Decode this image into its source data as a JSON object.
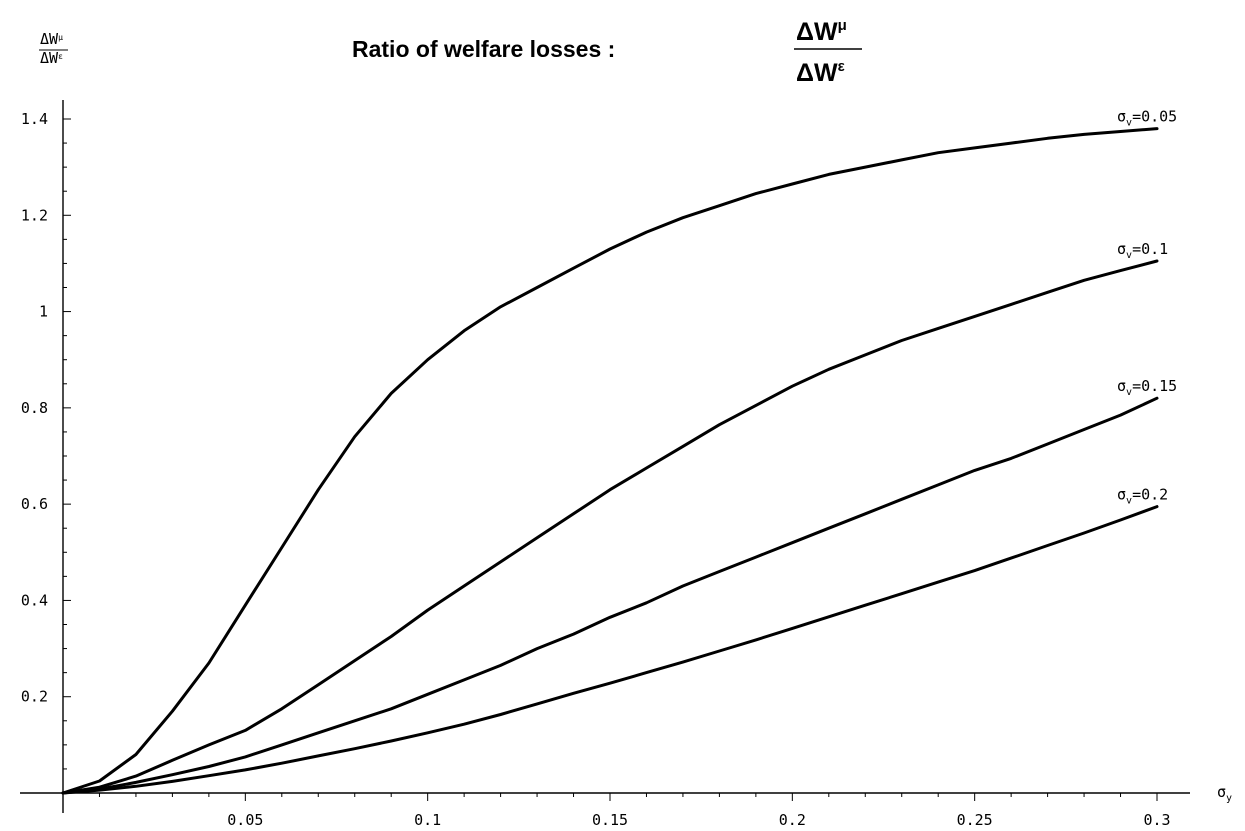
{
  "chart_data": {
    "type": "line",
    "title": {
      "prefix": "Ratio  of  welfare  losses  :",
      "numerator": "ΔW",
      "numerator_sup": "μ",
      "denominator": "ΔW",
      "denominator_sup": "ε"
    },
    "ylabel": {
      "numerator": "ΔW",
      "numerator_sup": "μ",
      "denominator": "ΔW",
      "denominator_sup": "ε"
    },
    "xlabel": {
      "symbol": "σ",
      "sub": "y"
    },
    "xlim": [
      0,
      0.3
    ],
    "ylim": [
      0,
      1.4
    ],
    "x_ticks": [
      0.05,
      0.1,
      0.15,
      0.2,
      0.25,
      0.3
    ],
    "x_tick_labels": [
      "0.05",
      "0.1",
      "0.15",
      "0.2",
      "0.25",
      "0.3"
    ],
    "y_ticks": [
      0.2,
      0.4,
      0.6,
      0.8,
      1.0,
      1.2,
      1.4
    ],
    "y_tick_labels": [
      "0.2",
      "0.4",
      "0.6",
      "0.8",
      "1",
      "1.2",
      "1.4"
    ],
    "grid": false,
    "legend": "inline-right",
    "x": [
      0,
      0.01,
      0.02,
      0.03,
      0.04,
      0.05,
      0.06,
      0.07,
      0.08,
      0.09,
      0.1,
      0.11,
      0.12,
      0.13,
      0.14,
      0.15,
      0.16,
      0.17,
      0.18,
      0.19,
      0.2,
      0.21,
      0.22,
      0.23,
      0.24,
      0.25,
      0.26,
      0.27,
      0.28,
      0.29,
      0.3
    ],
    "series": [
      {
        "name": "σv=0.05",
        "label_symbol": "σ",
        "label_sub": "v",
        "label_value": "=0.05",
        "values": [
          0,
          0.025,
          0.08,
          0.17,
          0.27,
          0.39,
          0.51,
          0.63,
          0.74,
          0.83,
          0.9,
          0.96,
          1.01,
          1.05,
          1.09,
          1.13,
          1.165,
          1.195,
          1.22,
          1.245,
          1.265,
          1.285,
          1.3,
          1.315,
          1.33,
          1.34,
          1.35,
          1.36,
          1.368,
          1.374,
          1.38
        ]
      },
      {
        "name": "σv=0.1",
        "label_symbol": "σ",
        "label_sub": "v",
        "label_value": "=0.1",
        "values": [
          0,
          0.012,
          0.035,
          0.068,
          0.1,
          0.13,
          0.175,
          0.225,
          0.275,
          0.325,
          0.38,
          0.43,
          0.48,
          0.53,
          0.58,
          0.63,
          0.675,
          0.72,
          0.765,
          0.805,
          0.845,
          0.88,
          0.91,
          0.94,
          0.965,
          0.99,
          1.015,
          1.04,
          1.065,
          1.085,
          1.105
        ]
      },
      {
        "name": "σv=0.15",
        "label_symbol": "σ",
        "label_sub": "v",
        "label_value": "=0.15",
        "values": [
          0,
          0.008,
          0.022,
          0.038,
          0.055,
          0.075,
          0.1,
          0.125,
          0.15,
          0.175,
          0.205,
          0.235,
          0.265,
          0.3,
          0.33,
          0.365,
          0.395,
          0.43,
          0.46,
          0.49,
          0.52,
          0.55,
          0.58,
          0.61,
          0.64,
          0.67,
          0.695,
          0.725,
          0.755,
          0.785,
          0.82
        ]
      },
      {
        "name": "σv=0.2",
        "label_symbol": "σ",
        "label_sub": "v",
        "label_value": "=0.2",
        "values": [
          0,
          0.006,
          0.014,
          0.024,
          0.036,
          0.048,
          0.062,
          0.077,
          0.092,
          0.108,
          0.125,
          0.143,
          0.163,
          0.185,
          0.207,
          0.228,
          0.25,
          0.272,
          0.295,
          0.318,
          0.342,
          0.366,
          0.39,
          0.414,
          0.438,
          0.462,
          0.488,
          0.514,
          0.54,
          0.567,
          0.595
        ]
      }
    ]
  }
}
